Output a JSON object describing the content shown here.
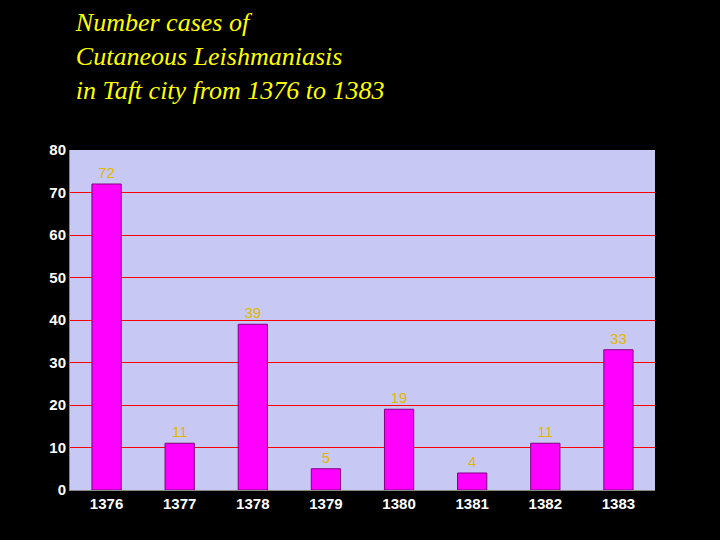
{
  "chart_data": {
    "type": "bar",
    "title": "Number cases of\nCutaneous Leishmaniasis\nin Taft city from 1376 to 1383",
    "categories": [
      "1376",
      "1377",
      "1378",
      "1379",
      "1380",
      "1381",
      "1382",
      "1383"
    ],
    "values": [
      72,
      11,
      39,
      5,
      19,
      4,
      11,
      33
    ],
    "color": "#ff00ff",
    "ylim": [
      0,
      80
    ],
    "yticks": [
      0,
      10,
      20,
      30,
      40,
      50,
      60,
      70,
      80
    ],
    "grid": true,
    "data_labels": true
  }
}
